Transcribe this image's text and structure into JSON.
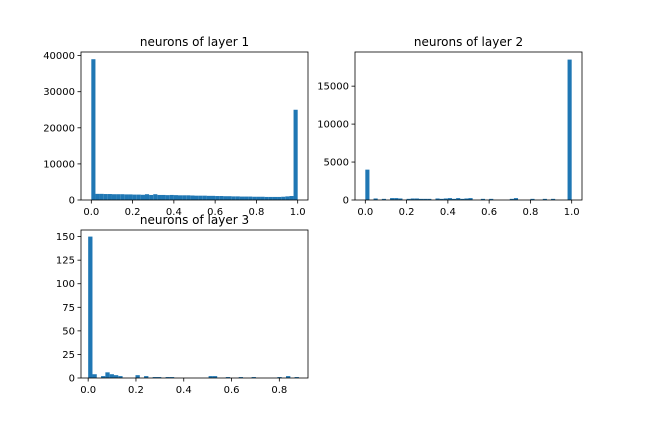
{
  "colors": {
    "bar": "#1f77b4",
    "axes": "#000000",
    "background": "#ffffff"
  },
  "chart_data": [
    {
      "type": "bar",
      "title": "neurons of layer 1",
      "xlim": [
        -0.05,
        1.05
      ],
      "ylim": [
        0,
        41000
      ],
      "xticks": [
        0.0,
        0.2,
        0.4,
        0.6,
        0.8,
        1.0
      ],
      "xtick_labels": [
        "0.0",
        "0.2",
        "0.4",
        "0.6",
        "0.8",
        "1.0"
      ],
      "yticks": [
        0,
        10000,
        20000,
        30000,
        40000
      ],
      "ytick_labels": [
        "0",
        "10000",
        "20000",
        "30000",
        "40000"
      ],
      "bin_width": 0.02,
      "x": [
        0.0,
        0.02,
        0.04,
        0.06,
        0.08,
        0.1,
        0.12,
        0.14,
        0.16,
        0.18,
        0.2,
        0.22,
        0.24,
        0.26,
        0.28,
        0.3,
        0.32,
        0.34,
        0.36,
        0.38,
        0.4,
        0.42,
        0.44,
        0.46,
        0.48,
        0.5,
        0.52,
        0.54,
        0.56,
        0.58,
        0.6,
        0.62,
        0.64,
        0.66,
        0.68,
        0.7,
        0.72,
        0.74,
        0.76,
        0.78,
        0.8,
        0.82,
        0.84,
        0.86,
        0.88,
        0.9,
        0.92,
        0.94,
        0.96,
        0.98
      ],
      "values": [
        39000,
        1700,
        1700,
        1650,
        1650,
        1600,
        1600,
        1600,
        1550,
        1550,
        1500,
        1500,
        1450,
        1600,
        1400,
        1600,
        1400,
        1400,
        1350,
        1400,
        1350,
        1300,
        1300,
        1300,
        1250,
        1200,
        1200,
        1200,
        1150,
        1150,
        1100,
        1100,
        1050,
        1050,
        1000,
        1000,
        950,
        950,
        950,
        900,
        900,
        900,
        850,
        850,
        850,
        850,
        900,
        1000,
        1100,
        25000
      ]
    },
    {
      "type": "bar",
      "title": "neurons of layer 2",
      "xlim": [
        -0.05,
        1.05
      ],
      "ylim": [
        0,
        19500
      ],
      "xticks": [
        0.0,
        0.2,
        0.4,
        0.6,
        0.8,
        1.0
      ],
      "xtick_labels": [
        "0.0",
        "0.2",
        "0.4",
        "0.6",
        "0.8",
        "1.0"
      ],
      "yticks": [
        0,
        5000,
        10000,
        15000
      ],
      "ytick_labels": [
        "0",
        "5000",
        "10000",
        "15000"
      ],
      "bin_width": 0.02,
      "x": [
        0.0,
        0.04,
        0.08,
        0.12,
        0.14,
        0.16,
        0.2,
        0.22,
        0.24,
        0.26,
        0.28,
        0.3,
        0.34,
        0.36,
        0.38,
        0.4,
        0.42,
        0.44,
        0.46,
        0.48,
        0.5,
        0.56,
        0.6,
        0.7,
        0.72,
        0.8,
        0.86,
        0.9,
        0.98
      ],
      "values": [
        4000,
        200,
        150,
        250,
        250,
        200,
        150,
        200,
        200,
        150,
        150,
        150,
        200,
        150,
        200,
        250,
        150,
        250,
        150,
        200,
        250,
        150,
        150,
        150,
        250,
        150,
        150,
        150,
        18500
      ]
    },
    {
      "type": "bar",
      "title": "neurons of layer 3",
      "xlim": [
        -0.03,
        0.92
      ],
      "ylim": [
        0,
        157
      ],
      "xticks": [
        0.0,
        0.2,
        0.4,
        0.6,
        0.8
      ],
      "xtick_labels": [
        "0.0",
        "0.2",
        "0.4",
        "0.6",
        "0.8"
      ],
      "yticks": [
        0,
        25,
        50,
        75,
        100,
        125,
        150
      ],
      "ytick_labels": [
        "0",
        "25",
        "50",
        "75",
        "100",
        "125",
        "150"
      ],
      "bin_width": 0.018,
      "x": [
        0.0,
        0.018,
        0.054,
        0.072,
        0.09,
        0.108,
        0.126,
        0.198,
        0.234,
        0.27,
        0.288,
        0.324,
        0.342,
        0.504,
        0.522,
        0.576,
        0.63,
        0.684,
        0.792,
        0.828,
        0.864
      ],
      "values": [
        150,
        4,
        2,
        6,
        4,
        3,
        2,
        3,
        2,
        1,
        1,
        1,
        1,
        2,
        2,
        1,
        1,
        1,
        1,
        2,
        1
      ]
    }
  ]
}
